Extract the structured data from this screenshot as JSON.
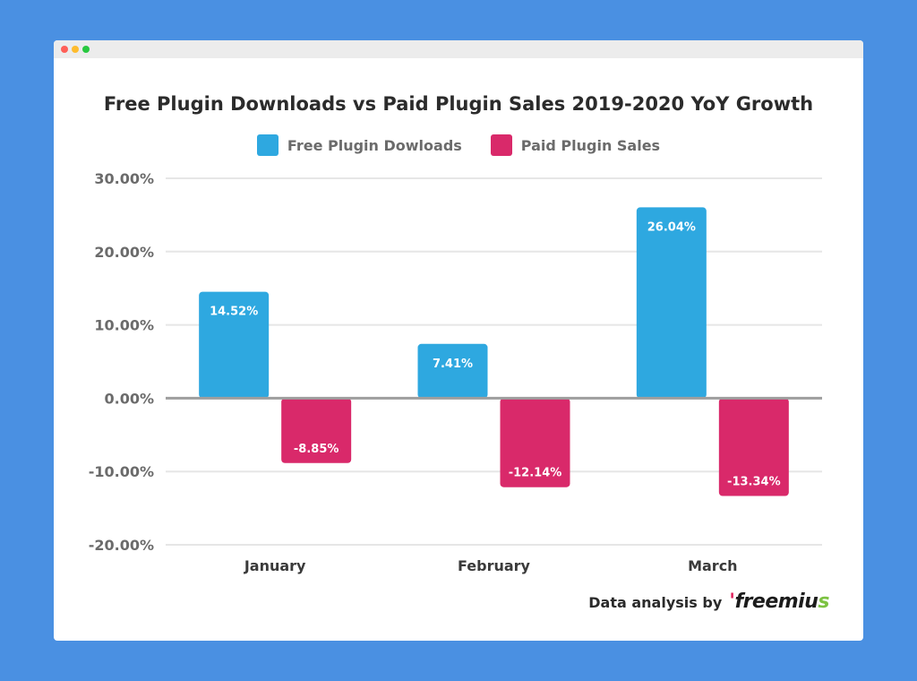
{
  "colors": {
    "background": "#4a90e2",
    "free": "#2ea8e0",
    "paid": "#d9296a",
    "axis": "#9e9e9e",
    "grid": "#e6e6e6"
  },
  "credit": {
    "text": "Data analysis by",
    "brand_main": "freemiu",
    "brand_end": "s"
  },
  "chart_data": {
    "type": "bar",
    "title": "Free Plugin Downloads vs Paid Plugin Sales 2019-2020 YoY Growth",
    "categories": [
      "January",
      "February",
      "March"
    ],
    "series": [
      {
        "name": "Free Plugin Dowloads",
        "values": [
          14.52,
          7.41,
          26.04
        ],
        "labels": [
          "14.52%",
          "7.41%",
          "26.04%"
        ]
      },
      {
        "name": "Paid Plugin Sales",
        "values": [
          -8.85,
          -12.14,
          -13.34
        ],
        "labels": [
          "-8.85%",
          "-12.14%",
          "-13.34%"
        ]
      }
    ],
    "ylim": [
      -20,
      30
    ],
    "yticks": [
      30,
      20,
      10,
      0,
      -10,
      -20
    ],
    "ytick_labels": [
      "30.00%",
      "20.00%",
      "10.00%",
      "0.00%",
      "-10.00%",
      "-20.00%"
    ],
    "grid": true,
    "legend_position": "top-center"
  }
}
